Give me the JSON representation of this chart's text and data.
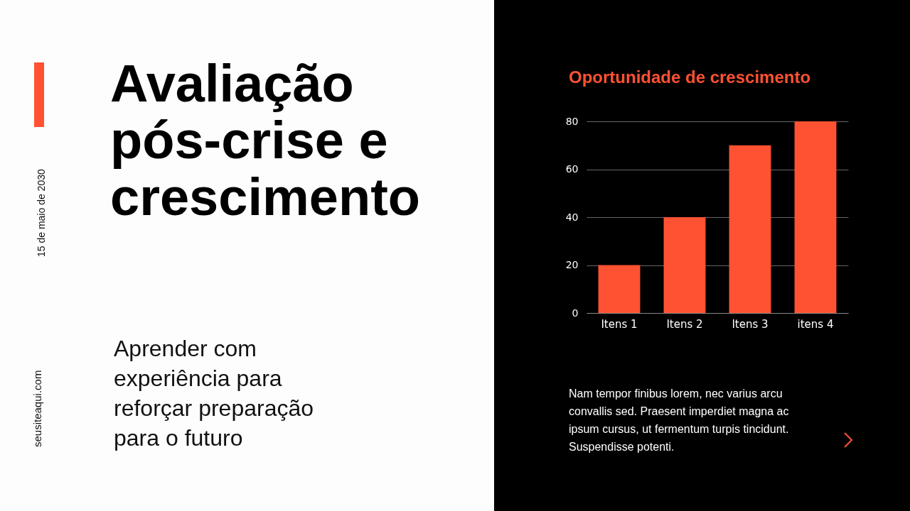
{
  "chart_data": {
    "type": "bar",
    "title": "Oportunidade de crescimento",
    "categories": [
      "Itens 1",
      "Itens 2",
      "Itens 3",
      "itens 4"
    ],
    "values": [
      20,
      40,
      70,
      80
    ],
    "color": "#ff5233",
    "ylim": [
      0,
      80
    ],
    "yticks": [
      0,
      20,
      40,
      60,
      80
    ],
    "grid": "y",
    "annotations": [
      "Avaliação pós-crise e crescimento",
      "Aprender com experiência para reforçar preparação para o futuro",
      "15 de maio de 2030",
      "seusiteaqui.com",
      "Nam tempor finibus lorem, nec varius arcu convallis sed. Praesent imperdiet magna ac ipsum cursus, ut fermentum turpis tincidunt. Suspendisse potenti."
    ]
  }
}
